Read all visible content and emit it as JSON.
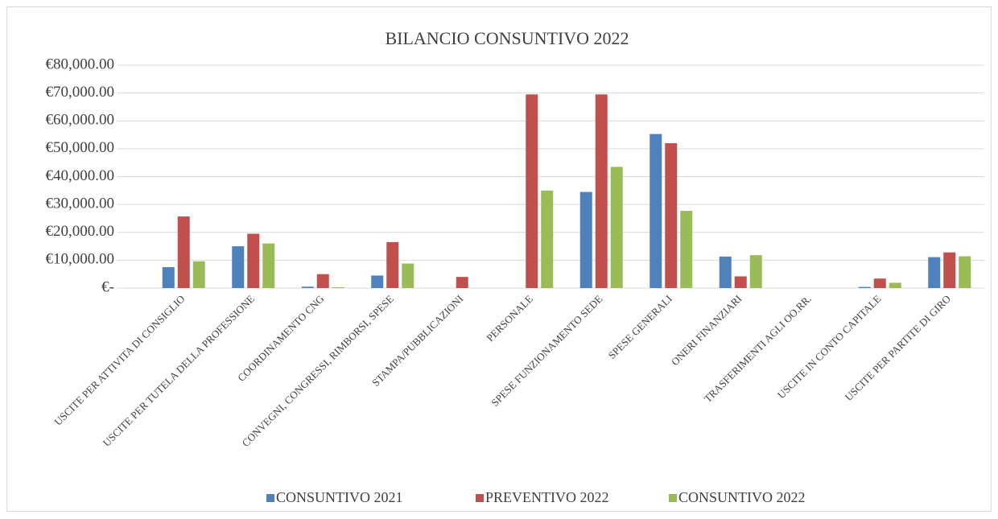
{
  "chart_data": {
    "type": "bar",
    "title": "BILANCIO CONSUNTIVO 2022",
    "categories": [
      "USCITE PER ATTIVITA DI CONSIGLIO",
      "USCITE PER TUTELA DELLA PROFESSIONE",
      "COORDINAMENTO CNG",
      "CONVEGNI, CONGRESSI, RIMBORSI, SPESE",
      "STAMPA/PUBBLICAZIONI",
      "PERSONALE",
      "SPESE FUNZIONAMENTO SEDE",
      "SPESE GENERALI",
      "ONERI FINANZIARI",
      "TRASFERIMENTI AGLI OO.RR.",
      "USCITE IN CONTO CAPITALE",
      "USCITE PER PARTITE DI GIRO"
    ],
    "series": [
      {
        "name": "CONSUNTIVO 2021",
        "color": "#4f81bd",
        "values": [
          7500,
          15000,
          500,
          4500,
          0,
          0,
          34500,
          55300,
          11300,
          0,
          400,
          11100
        ]
      },
      {
        "name": "PREVENTIVO 2022",
        "color": "#c0504d",
        "values": [
          25700,
          19500,
          5000,
          16500,
          4000,
          69500,
          69500,
          52000,
          4200,
          0,
          3400,
          12800
        ]
      },
      {
        "name": "CONSUNTIVO 2022",
        "color": "#9bbb59",
        "values": [
          9600,
          16000,
          300,
          8800,
          0,
          35000,
          43500,
          27700,
          11800,
          0,
          1900,
          11400
        ]
      }
    ],
    "ylim": [
      0,
      80000
    ],
    "yticks": [
      {
        "value": 0,
        "label": "€-"
      },
      {
        "value": 10000,
        "label": "€10,000.00"
      },
      {
        "value": 20000,
        "label": "€20,000.00"
      },
      {
        "value": 30000,
        "label": "€30,000.00"
      },
      {
        "value": 40000,
        "label": "€40,000.00"
      },
      {
        "value": 50000,
        "label": "€50,000.00"
      },
      {
        "value": 60000,
        "label": "€60,000.00"
      },
      {
        "value": 70000,
        "label": "€70,000.00"
      },
      {
        "value": 80000,
        "label": "€80,000.00"
      }
    ],
    "grid": true,
    "legend": "bottom"
  }
}
